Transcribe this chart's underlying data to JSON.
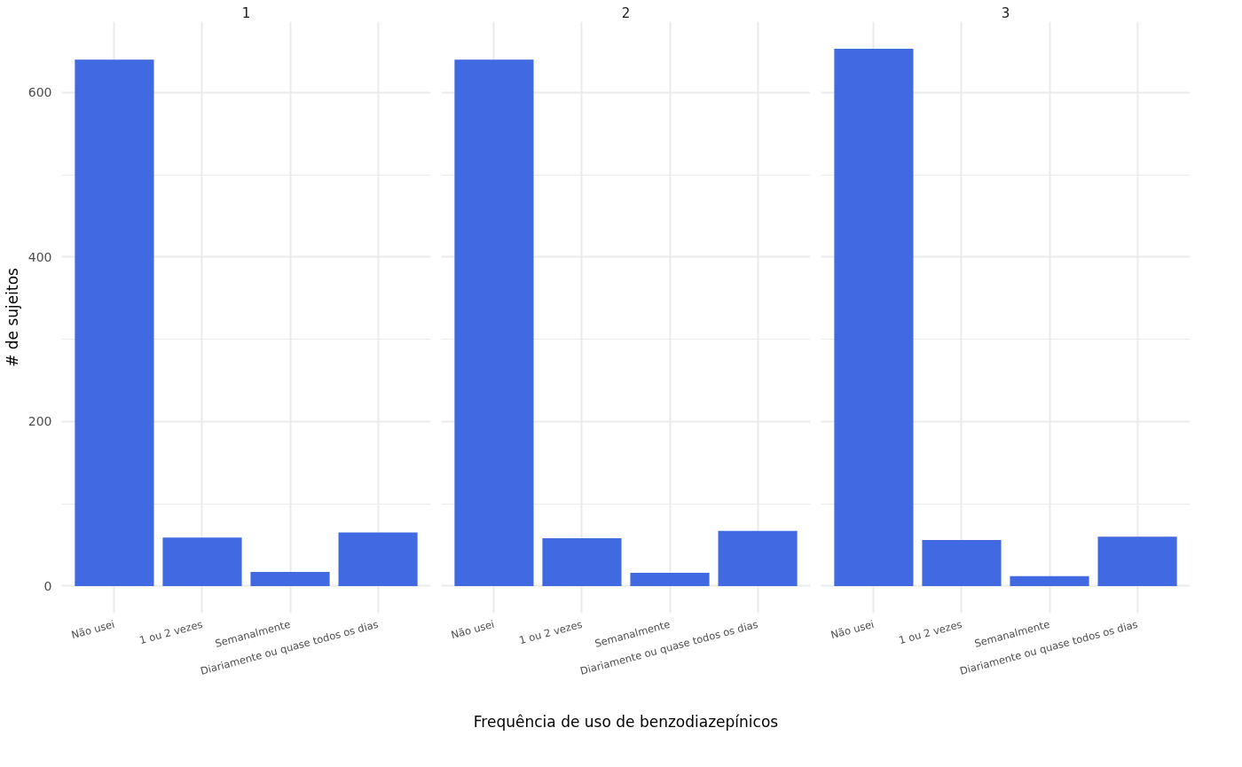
{
  "chart_data": [
    {
      "type": "bar",
      "title": "1",
      "ylabel": "# de sujeitos",
      "categories": [
        "Não usei",
        "1 ou 2 vezes",
        "Semanalmente",
        "Diariamente ou quase todos os dias"
      ],
      "values": [
        640,
        59,
        17,
        65
      ],
      "color": "#4169e1",
      "ylim": [
        -33,
        686
      ],
      "yticks": [
        0,
        {
          "value": 100,
          "label": null
        },
        200,
        {
          "value": 300,
          "label": null
        },
        400,
        {
          "value": 500,
          "label": null
        },
        600
      ],
      "grid": true
    },
    {
      "type": "bar",
      "title": "2",
      "xlabel": "Frequência de uso de benzodiazepínicos",
      "categories": [
        "Não usei",
        "1 ou 2 vezes",
        "Semanalmente",
        "Diariamente ou quase todos os dias"
      ],
      "values": [
        640,
        58,
        16,
        67
      ],
      "color": "#4169e1",
      "ylim": [
        -33,
        686
      ],
      "yticks": [
        0,
        {
          "value": 100,
          "label": null
        },
        200,
        {
          "value": 300,
          "label": null
        },
        400,
        {
          "value": 500,
          "label": null
        },
        600
      ],
      "grid": true,
      "tick_labels": "x"
    },
    {
      "type": "bar",
      "title": "3",
      "categories": [
        "Não usei",
        "1 ou 2 vezes",
        "Semanalmente",
        "Diariamente ou quase todos os dias"
      ],
      "values": [
        653,
        56,
        12,
        60
      ],
      "color": "#4169e1",
      "ylim": [
        -33,
        686
      ],
      "yticks": [
        0,
        {
          "value": 100,
          "label": null
        },
        200,
        {
          "value": 300,
          "label": null
        },
        400,
        {
          "value": 500,
          "label": null
        },
        600
      ],
      "grid": true,
      "tick_labels": "x"
    }
  ]
}
